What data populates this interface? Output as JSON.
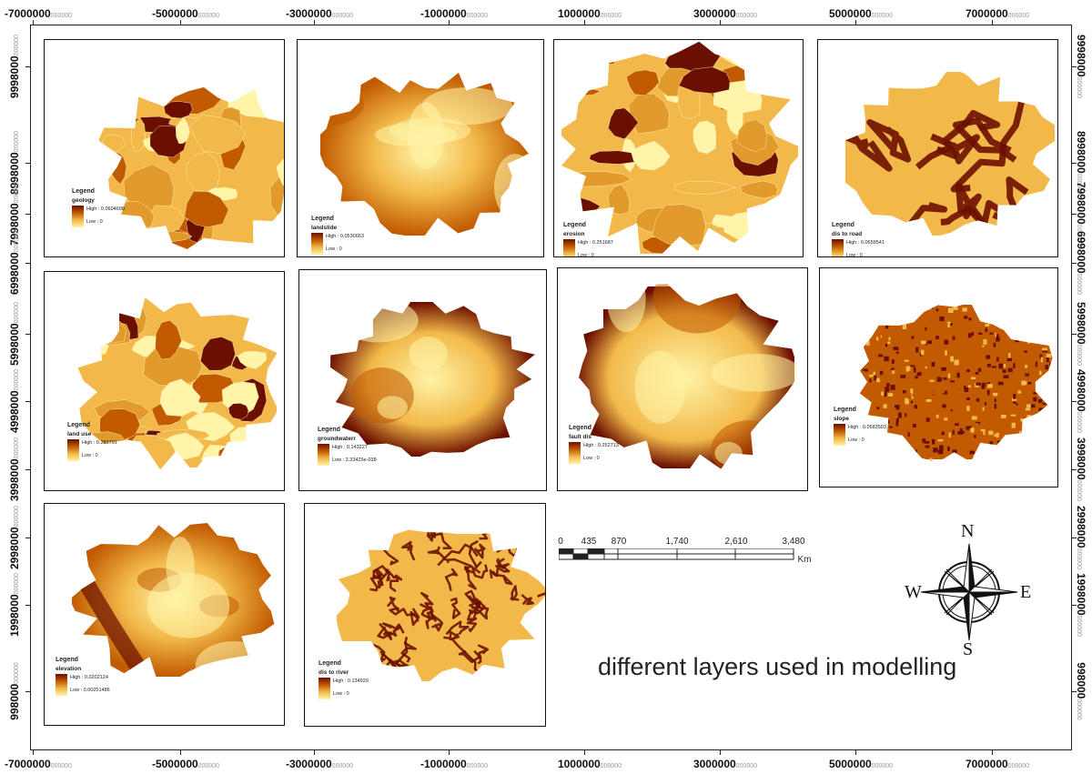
{
  "axes": {
    "x_ticks": [
      {
        "main": "-7000000",
        "dec": "000000"
      },
      {
        "main": "-5000000",
        "dec": "000000"
      },
      {
        "main": "-3000000",
        "dec": "000000"
      },
      {
        "main": "-1000000",
        "dec": "000000"
      },
      {
        "main": "1000000",
        "dec": "000000"
      },
      {
        "main": "3000000",
        "dec": "000000"
      },
      {
        "main": "5000000",
        "dec": "000000"
      },
      {
        "main": "7000000",
        "dec": "000000"
      }
    ],
    "y_ticks": [
      {
        "main": "9998000",
        "dec": "000000"
      },
      {
        "main": "8998000",
        "dec": "000000"
      },
      {
        "main": "7998000",
        "dec": "000000"
      },
      {
        "main": "6998000",
        "dec": "000000"
      },
      {
        "main": "5998000",
        "dec": "000000"
      },
      {
        "main": "4998000",
        "dec": "000000"
      },
      {
        "main": "3998000",
        "dec": "000000"
      },
      {
        "main": "2998000",
        "dec": "000000"
      },
      {
        "main": "1998000",
        "dec": "000000"
      },
      {
        "main": "998000",
        "dec": "000000"
      }
    ]
  },
  "panels": [
    {
      "id": "geology",
      "legend_title": "Legend",
      "layer": "geology",
      "high": "High : 0.0604608",
      "low": "Low : 0",
      "style": "categorical"
    },
    {
      "id": "landslide",
      "legend_title": "Legend",
      "layer": "landslide",
      "high": "High : 0.0530663",
      "low": "Low : 0",
      "style": "smooth"
    },
    {
      "id": "erosion",
      "legend_title": "Legend",
      "layer": "erosion",
      "high": "High : 0.251687",
      "low": "Low : 0",
      "style": "categorical"
    },
    {
      "id": "dis-to-road",
      "legend_title": "Legend",
      "layer": "dis to road",
      "high": "High : 0.0659541",
      "low": "Low : 0",
      "style": "network"
    },
    {
      "id": "land-use",
      "legend_title": "Legend",
      "layer": "land use",
      "high": "High : 0.282791",
      "low": "Low : 0",
      "style": "categorical"
    },
    {
      "id": "groundwater",
      "legend_title": "Legend",
      "layer": "groundwaterr",
      "high": "High : 0.143227",
      "low": "Low : 3.33425e-038",
      "style": "smooth"
    },
    {
      "id": "fault-dis",
      "legend_title": "Legend",
      "layer": "fault dis",
      "high": "High : 0.252713",
      "low": "Low : 0",
      "style": "smooth"
    },
    {
      "id": "slope",
      "legend_title": "Legend",
      "layer": "slope",
      "high": "High : 0.0583593",
      "low": "Low : 0",
      "style": "noisy"
    },
    {
      "id": "elevation",
      "legend_title": "Legend",
      "layer": "elevation",
      "high": "High : 0.0202124",
      "low": "Low : 0.00251486",
      "style": "smooth"
    },
    {
      "id": "dis-to-river",
      "legend_title": "Legend",
      "layer": "dis to river",
      "high": "High : 0.134929",
      "low": "Low : 0",
      "style": "network"
    }
  ],
  "scale_bar": {
    "labels": [
      "0",
      "435",
      "870",
      "1,740",
      "2,610",
      "3,480"
    ],
    "unit": "Km"
  },
  "north_arrow": {
    "n": "N",
    "s": "S",
    "e": "E",
    "w": "W"
  },
  "caption": "different layers used in modelling",
  "colors": {
    "dark": "#6b0f00",
    "mid": "#c15a00",
    "light": "#f2b94a",
    "pale": "#fff4a8"
  }
}
